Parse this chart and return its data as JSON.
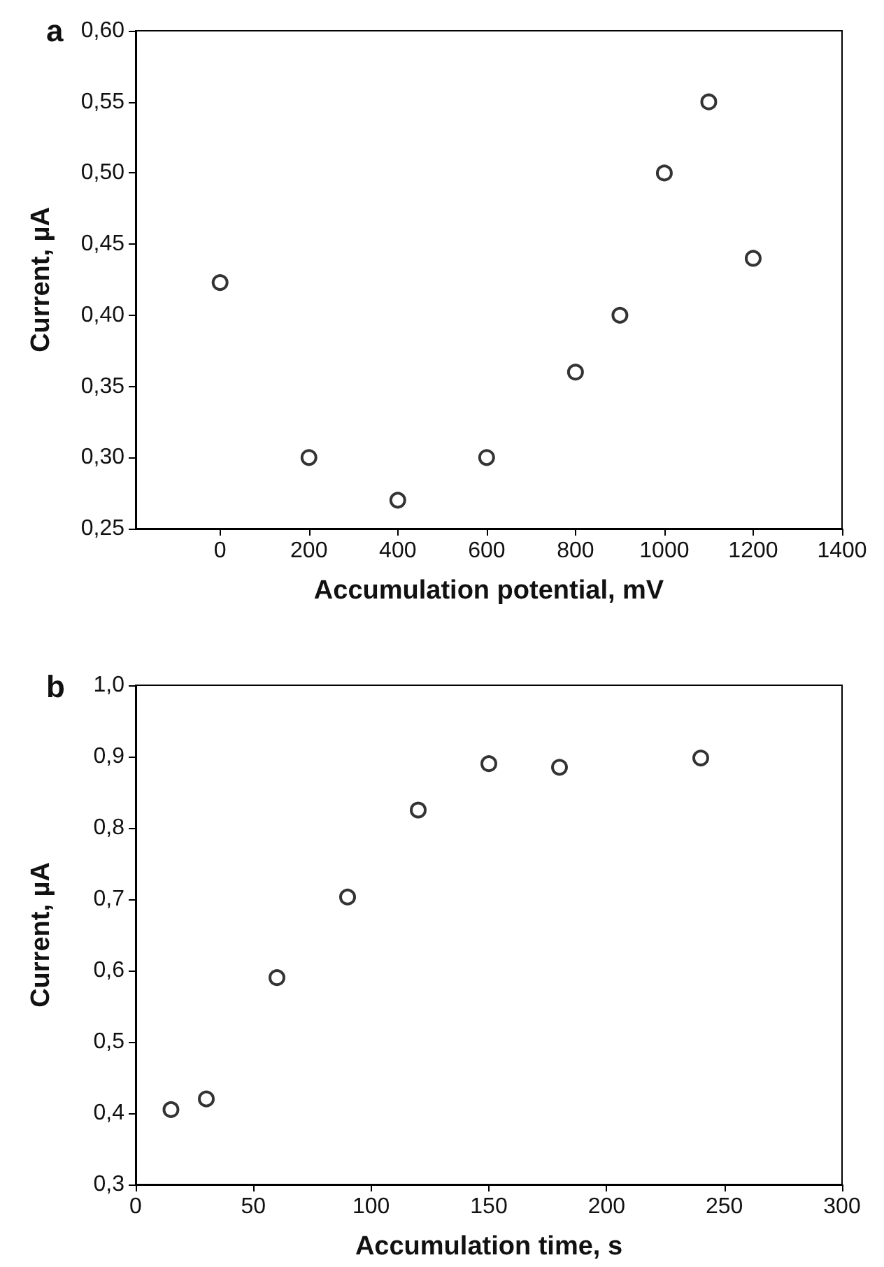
{
  "chart_data": [
    {
      "type": "scatter",
      "title": "a",
      "xlabel": "Accumulation potential, mV",
      "ylabel": "Current, µA",
      "x": [
        0,
        200,
        400,
        600,
        800,
        900,
        1000,
        1100,
        1200
      ],
      "series": [
        {
          "color": "#000000",
          "values": [
            0.423,
            0.3,
            0.27,
            0.3,
            0.36,
            0.4,
            0.5,
            0.55,
            0.44
          ]
        }
      ],
      "xlim": [
        -190,
        1400
      ],
      "xticks": [
        0,
        200,
        400,
        600,
        800,
        1000,
        1200,
        1400
      ],
      "ylim": [
        0.25,
        0.6
      ],
      "yticks": [
        {
          "value": 0.25,
          "label": "0,25"
        },
        {
          "value": 0.3,
          "label": "0,30"
        },
        {
          "value": 0.35,
          "label": "0,35"
        },
        {
          "value": 0.4,
          "label": "0,40"
        },
        {
          "value": 0.45,
          "label": "0,45"
        },
        {
          "value": 0.5,
          "label": "0,50"
        },
        {
          "value": 0.55,
          "label": "0,55"
        },
        {
          "value": 0.6,
          "label": "0,60"
        }
      ],
      "marker": "circle",
      "grid": false
    },
    {
      "type": "scatter",
      "title": "b",
      "xlabel": "Accumulation time, s",
      "ylabel": "Current, µA",
      "x": [
        15,
        30,
        60,
        90,
        120,
        150,
        180,
        240
      ],
      "series": [
        {
          "color": "#000000",
          "values": [
            0.405,
            0.42,
            0.59,
            0.703,
            0.825,
            0.89,
            0.885,
            0.898
          ]
        }
      ],
      "xlim": [
        0,
        300
      ],
      "xticks": [
        0,
        50,
        100,
        150,
        200,
        250,
        300
      ],
      "ylim": [
        0.3,
        1.0
      ],
      "yticks": [
        {
          "value": 0.3,
          "label": "0,3"
        },
        {
          "value": 0.4,
          "label": "0,4"
        },
        {
          "value": 0.5,
          "label": "0,5"
        },
        {
          "value": 0.6,
          "label": "0,6"
        },
        {
          "value": 0.7,
          "label": "0,7"
        },
        {
          "value": 0.8,
          "label": "0,8"
        },
        {
          "value": 0.9,
          "label": "0,9"
        },
        {
          "value": 1.0,
          "label": "1,0"
        }
      ],
      "marker": "circle",
      "grid": false
    }
  ]
}
